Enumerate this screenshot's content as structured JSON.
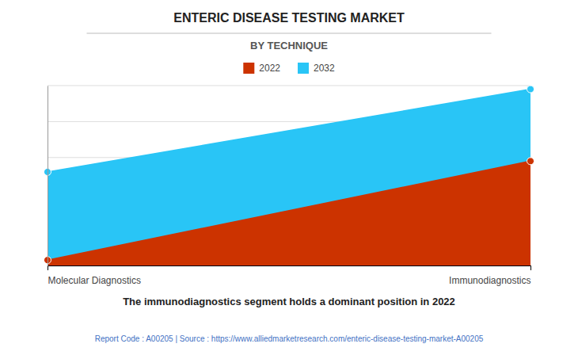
{
  "chart_data": {
    "type": "area",
    "title": "ENTERIC DISEASE TESTING MARKET",
    "subtitle": "BY TECHNIQUE",
    "categories": [
      "Molecular Diagnostics",
      "Immunodiagnostics"
    ],
    "series": [
      {
        "name": "2022",
        "color": "#CC3300",
        "values": [
          0.03,
          0.58
        ]
      },
      {
        "name": "2032",
        "color": "#29C5F6",
        "values": [
          0.52,
          0.98
        ]
      }
    ],
    "ylim": [
      0,
      1
    ],
    "yticks": [
      0.2,
      0.4,
      0.6,
      0.8,
      1
    ],
    "grid": true,
    "tick_labels": "x",
    "legend": "top",
    "annotations": [
      "The immunodiagnostics segment holds a dominant position in 2022",
      "Report Code : A00205  |  Source : https://www.alliedmarketresearch.com/enteric-disease-testing-market-A00205"
    ]
  }
}
